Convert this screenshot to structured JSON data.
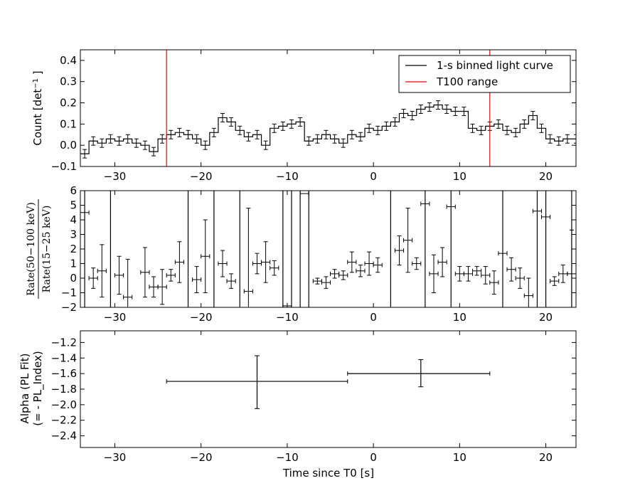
{
  "chart_data": [
    {
      "type": "line",
      "panel": "light-curve",
      "ylabel": "Count [det$^{-1}$ ]",
      "ylabel_main": "Count [det",
      "ylabel_sup": "−1",
      "ylabel_end": " ]",
      "xlim": [
        -34,
        23.5
      ],
      "ylim": [
        -0.1,
        0.45
      ],
      "xticks": [
        -30,
        -20,
        -10,
        0,
        10,
        20
      ],
      "yticks": [
        -0.1,
        0.0,
        0.1,
        0.2,
        0.3,
        0.4
      ],
      "ytick_labels": [
        "−0.1",
        "0.0",
        "0.1",
        "0.2",
        "0.3",
        "0.4"
      ],
      "legend": {
        "placement": "top-right",
        "entries": [
          {
            "label": "1-s binned light curve",
            "color": "#000000"
          },
          {
            "label": "T100 range",
            "color": "#ff0000"
          }
        ]
      },
      "series": [
        {
          "name": "1-s binned light curve",
          "x_start": -34,
          "bin_width": 1,
          "values": [
            -0.04,
            0.02,
            0.01,
            0.03,
            0.02,
            0.03,
            0.01,
            0.0,
            -0.03,
            0.03,
            0.05,
            0.06,
            0.05,
            0.03,
            0.0,
            0.06,
            0.13,
            0.11,
            0.07,
            0.04,
            0.05,
            0.0,
            0.08,
            0.09,
            0.1,
            0.11,
            0.02,
            0.03,
            0.05,
            0.03,
            0.01,
            0.05,
            0.04,
            0.08,
            0.07,
            0.09,
            0.11,
            0.15,
            0.14,
            0.17,
            0.18,
            0.19,
            0.17,
            0.16,
            0.16,
            0.08,
            0.07,
            0.09,
            0.1,
            0.07,
            0.06,
            0.1,
            0.14,
            0.08,
            0.03,
            0.02,
            0.03,
            0.03
          ],
          "errors": [
            0.02,
            0.02,
            0.02,
            0.02,
            0.02,
            0.02,
            0.02,
            0.02,
            0.02,
            0.02,
            0.02,
            0.02,
            0.02,
            0.02,
            0.02,
            0.02,
            0.02,
            0.02,
            0.02,
            0.02,
            0.02,
            0.02,
            0.02,
            0.02,
            0.02,
            0.02,
            0.02,
            0.02,
            0.02,
            0.02,
            0.02,
            0.02,
            0.02,
            0.02,
            0.02,
            0.02,
            0.02,
            0.02,
            0.02,
            0.02,
            0.02,
            0.02,
            0.02,
            0.02,
            0.02,
            0.02,
            0.02,
            0.02,
            0.02,
            0.02,
            0.02,
            0.02,
            0.02,
            0.02,
            0.02,
            0.02,
            0.02,
            0.02
          ],
          "color": "#000000"
        }
      ],
      "t100_range": [
        -24,
        13.5
      ],
      "t100_color": "#ff0000"
    },
    {
      "type": "scatter",
      "panel": "hardness-ratio",
      "ylabel_numerator": "Rate(50−100 keV)",
      "ylabel_denominator": "Rate(15−25 keV)",
      "xlim": [
        -34,
        23.5
      ],
      "ylim": [
        -2,
        6
      ],
      "xticks": [
        -30,
        -20,
        -10,
        0,
        10,
        20
      ],
      "yticks": [
        -2,
        -1,
        0,
        1,
        2,
        3,
        4,
        5,
        6
      ],
      "ytick_labels": [
        "−2",
        "−1",
        "0",
        "1",
        "2",
        "3",
        "4",
        "5",
        "6"
      ],
      "vertical_lines": [
        -33.5,
        -30.5,
        -21.5,
        -18.5,
        -15.5,
        -10.5,
        -9.5,
        -8.5,
        -7.5,
        2,
        6,
        9,
        15,
        19,
        20,
        23
      ],
      "points": [
        {
          "x": -33.5,
          "y": 4.5,
          "err": 0
        },
        {
          "x": -32.5,
          "y": 0,
          "err": 0.7
        },
        {
          "x": -31.5,
          "y": 0.5,
          "err": 1.8
        },
        {
          "x": -29.5,
          "y": 0.2,
          "err": 1.3
        },
        {
          "x": -28.5,
          "y": -1.3,
          "err": 2.6
        },
        {
          "x": -26.5,
          "y": 0.4,
          "err": 1.7
        },
        {
          "x": -25.5,
          "y": -0.6,
          "err": 0.7
        },
        {
          "x": -24.5,
          "y": -0.6,
          "err": 1.2
        },
        {
          "x": -23.5,
          "y": 0.2,
          "err": 0.4
        },
        {
          "x": -22.5,
          "y": 1.1,
          "err": 1.4
        },
        {
          "x": -20.5,
          "y": -0.1,
          "err": 0.9
        },
        {
          "x": -19.5,
          "y": 1.5,
          "err": 2.5
        },
        {
          "x": -17.5,
          "y": 1,
          "err": 0.9
        },
        {
          "x": -16.5,
          "y": -0.2,
          "err": 0.5
        },
        {
          "x": -14.5,
          "y": -0.9,
          "err": 5.7
        },
        {
          "x": -13.5,
          "y": 1,
          "err": 0.7
        },
        {
          "x": -12.5,
          "y": 1.1,
          "err": 1.4
        },
        {
          "x": -11.5,
          "y": 0.7,
          "err": 0.5
        },
        {
          "x": -10,
          "y": -1.9,
          "err": 0
        },
        {
          "x": -8,
          "y": 5.8,
          "err": 0
        },
        {
          "x": -6.5,
          "y": -0.2,
          "err": 0.2
        },
        {
          "x": -5.5,
          "y": -0.3,
          "err": 0.4
        },
        {
          "x": -4.5,
          "y": 0.3,
          "err": 0.3
        },
        {
          "x": -3.5,
          "y": 0.2,
          "err": 0.3
        },
        {
          "x": -2.5,
          "y": 1.1,
          "err": 0.7
        },
        {
          "x": -1.5,
          "y": 0.5,
          "err": 0.4
        },
        {
          "x": -0.5,
          "y": 1,
          "err": 0.8
        },
        {
          "x": 0.5,
          "y": 0.9,
          "err": 0.5
        },
        {
          "x": 3,
          "y": 1.9,
          "err": 1
        },
        {
          "x": 4,
          "y": 2.6,
          "err": 2.2
        },
        {
          "x": 5,
          "y": 1,
          "err": 0.4
        },
        {
          "x": 6,
          "y": 5.1,
          "err": 0
        },
        {
          "x": 7,
          "y": 0.3,
          "err": 1.3
        },
        {
          "x": 8,
          "y": 1.1,
          "err": 1
        },
        {
          "x": 9,
          "y": 4.9,
          "err": 0
        },
        {
          "x": 10,
          "y": 0.3,
          "err": 0.5
        },
        {
          "x": 11,
          "y": 0.3,
          "err": 0.5
        },
        {
          "x": 12,
          "y": 0.5,
          "err": 0.3
        },
        {
          "x": 13,
          "y": 0.2,
          "err": 0.6
        },
        {
          "x": 14,
          "y": -0.3,
          "err": 0.8
        },
        {
          "x": 15,
          "y": 1.7,
          "err": 0
        },
        {
          "x": 16,
          "y": 0.6,
          "err": 0.8
        },
        {
          "x": 17,
          "y": 0,
          "err": 0.7
        },
        {
          "x": 18,
          "y": -1.2,
          "err": 1.2
        },
        {
          "x": 19,
          "y": 4.6,
          "err": 0
        },
        {
          "x": 20,
          "y": 4.2,
          "err": 0
        },
        {
          "x": 21,
          "y": -0.2,
          "err": 0.3
        },
        {
          "x": 22,
          "y": 0.3,
          "err": 0.6
        },
        {
          "x": 23,
          "y": 0.3,
          "err": 3
        }
      ]
    },
    {
      "type": "scatter",
      "panel": "alpha",
      "ylabel_line1": "Alpha (PL Fit)",
      "ylabel_line2": "(= - PL_Index)",
      "xlabel": "Time since T0 [s]",
      "xlim": [
        -34,
        23.5
      ],
      "ylim": [
        -2.55,
        -1.05
      ],
      "xticks": [
        -30,
        -20,
        -10,
        0,
        10,
        20
      ],
      "yticks": [
        -2.4,
        -2.2,
        -2.0,
        -1.8,
        -1.6,
        -1.4,
        -1.2
      ],
      "ytick_labels": [
        "−2.4",
        "−2.2",
        "−2.0",
        "−1.8",
        "−1.6",
        "−1.4",
        "−1.2"
      ],
      "points": [
        {
          "x": -13.5,
          "xmin": -24,
          "xmax": -3,
          "y": -1.7,
          "ymin": -2.05,
          "ymax": -1.37
        },
        {
          "x": 5.5,
          "xmin": -3,
          "xmax": 13.5,
          "y": -1.6,
          "ymin": -1.77,
          "ymax": -1.42
        }
      ]
    }
  ]
}
